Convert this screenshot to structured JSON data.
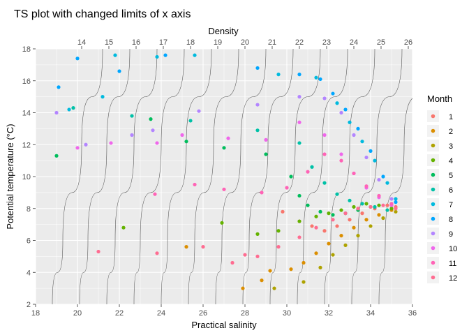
{
  "chart_data": {
    "type": "scatter",
    "title": "TS plot with changed limits of x axis",
    "xlabel": "Practical salinity",
    "ylabel": "Potential temperature (°C)",
    "top_axis_label": "Density",
    "xlim": [
      18,
      36
    ],
    "ylim": [
      2,
      18
    ],
    "x_ticks": [
      18,
      20,
      22,
      24,
      26,
      28,
      30,
      32,
      34,
      36
    ],
    "y_ticks": [
      2,
      4,
      6,
      8,
      10,
      12,
      14,
      16,
      18
    ],
    "grid": true,
    "legend_position": "right",
    "legend": {
      "title": "Month",
      "entries": [
        {
          "label": "1",
          "color": "#F8766D"
        },
        {
          "label": "2",
          "color": "#DB8E00"
        },
        {
          "label": "3",
          "color": "#AEA200"
        },
        {
          "label": "4",
          "color": "#64B200"
        },
        {
          "label": "5",
          "color": "#00BD5C"
        },
        {
          "label": "6",
          "color": "#00C1A7"
        },
        {
          "label": "7",
          "color": "#00BADE"
        },
        {
          "label": "8",
          "color": "#00A6FF"
        },
        {
          "label": "9",
          "color": "#B385FF"
        },
        {
          "label": "10",
          "color": "#EF67EB"
        },
        {
          "label": "11",
          "color": "#FF63B6"
        },
        {
          "label": "12",
          "color": "#FF6C91"
        }
      ]
    },
    "density_isolines": [
      {
        "label": "14",
        "label_salinity": 20.2,
        "points": [
          [
            18.8,
            2
          ],
          [
            19.3,
            6
          ],
          [
            20.2,
            12
          ],
          [
            21.2,
            18
          ]
        ]
      },
      {
        "label": "15",
        "label_salinity": 21.5,
        "points": [
          [
            20.1,
            2
          ],
          [
            20.5,
            6
          ],
          [
            21.4,
            12
          ],
          [
            22.5,
            18
          ]
        ]
      },
      {
        "label": "16",
        "label_salinity": 22.8,
        "points": [
          [
            21.4,
            2
          ],
          [
            21.8,
            6
          ],
          [
            22.7,
            12
          ],
          [
            23.8,
            18
          ]
        ]
      },
      {
        "label": "17",
        "label_salinity": 24.1,
        "points": [
          [
            22.7,
            2
          ],
          [
            23.0,
            6
          ],
          [
            24.0,
            12
          ],
          [
            25.1,
            18
          ]
        ]
      },
      {
        "label": "18",
        "label_salinity": 25.4,
        "points": [
          [
            24.0,
            2
          ],
          [
            24.3,
            6
          ],
          [
            25.2,
            12
          ],
          [
            26.4,
            18
          ]
        ]
      },
      {
        "label": "19",
        "label_salinity": 26.7,
        "points": [
          [
            25.3,
            2
          ],
          [
            25.6,
            6
          ],
          [
            26.5,
            12
          ],
          [
            27.7,
            18
          ]
        ]
      },
      {
        "label": "20",
        "label_salinity": 28.0,
        "points": [
          [
            26.6,
            2
          ],
          [
            26.9,
            6
          ],
          [
            27.8,
            12
          ],
          [
            29.0,
            18
          ]
        ]
      },
      {
        "label": "21",
        "label_salinity": 29.3,
        "points": [
          [
            27.9,
            2
          ],
          [
            28.2,
            6
          ],
          [
            29.1,
            12
          ],
          [
            30.3,
            18
          ]
        ]
      },
      {
        "label": "22",
        "label_salinity": 30.6,
        "points": [
          [
            29.2,
            2
          ],
          [
            29.5,
            6
          ],
          [
            30.4,
            12
          ],
          [
            31.6,
            18
          ]
        ]
      },
      {
        "label": "23",
        "label_salinity": 31.9,
        "points": [
          [
            30.5,
            2
          ],
          [
            30.8,
            6
          ],
          [
            31.7,
            12
          ],
          [
            32.9,
            18
          ]
        ]
      },
      {
        "label": "24",
        "label_salinity": 33.2,
        "points": [
          [
            31.8,
            2
          ],
          [
            32.1,
            6
          ],
          [
            33.0,
            12
          ],
          [
            34.2,
            18
          ]
        ]
      },
      {
        "label": "25",
        "label_salinity": 34.5,
        "points": [
          [
            33.1,
            2
          ],
          [
            33.4,
            6
          ],
          [
            34.3,
            12
          ],
          [
            35.5,
            18
          ]
        ]
      },
      {
        "label": "26",
        "label_salinity": 35.8,
        "points": [
          [
            34.4,
            2
          ],
          [
            34.7,
            6
          ],
          [
            35.6,
            12
          ],
          [
            36.8,
            18
          ]
        ]
      }
    ],
    "series": [
      {
        "name": "1",
        "points": [
          [
            29.8,
            7.8
          ],
          [
            30.6,
            7.2
          ],
          [
            31.2,
            6.9
          ],
          [
            31.8,
            6.6
          ],
          [
            32.4,
            6.9
          ],
          [
            33.0,
            7.3
          ],
          [
            33.6,
            7.7
          ],
          [
            34.2,
            8.0
          ],
          [
            34.8,
            8.2
          ],
          [
            35.2,
            8.1
          ]
        ]
      },
      {
        "name": "2",
        "points": [
          [
            25.2,
            5.6
          ],
          [
            27.9,
            3.0
          ],
          [
            28.8,
            3.5
          ],
          [
            29.2,
            4.1
          ],
          [
            30.2,
            4.2
          ],
          [
            30.8,
            4.6
          ],
          [
            31.4,
            5.2
          ],
          [
            32.0,
            5.8
          ],
          [
            32.6,
            6.3
          ],
          [
            33.2,
            6.8
          ],
          [
            33.8,
            7.3
          ],
          [
            34.4,
            7.6
          ],
          [
            35.0,
            7.9
          ]
        ]
      },
      {
        "name": "3",
        "points": [
          [
            29.4,
            3.0
          ],
          [
            30.8,
            3.4
          ],
          [
            31.6,
            4.3
          ],
          [
            32.2,
            5.1
          ],
          [
            32.8,
            5.7
          ],
          [
            33.4,
            6.3
          ],
          [
            34.0,
            6.9
          ],
          [
            34.6,
            7.4
          ],
          [
            35.2,
            7.8
          ]
        ]
      },
      {
        "name": "4",
        "points": [
          [
            22.2,
            6.8
          ],
          [
            26.9,
            7.1
          ],
          [
            28.6,
            6.4
          ],
          [
            29.6,
            6.6
          ],
          [
            30.6,
            7.2
          ],
          [
            31.4,
            7.5
          ],
          [
            32.0,
            7.7
          ],
          [
            32.6,
            7.9
          ],
          [
            33.2,
            8.1
          ],
          [
            33.8,
            8.3
          ],
          [
            34.4,
            8.2
          ],
          [
            35.0,
            8.0
          ]
        ]
      },
      {
        "name": "5",
        "points": [
          [
            19.0,
            11.3
          ],
          [
            23.5,
            13.6
          ],
          [
            25.2,
            12.2
          ],
          [
            27.0,
            11.8
          ],
          [
            29.0,
            11.4
          ],
          [
            30.2,
            10.0
          ],
          [
            30.6,
            8.8
          ],
          [
            31.0,
            8.2
          ],
          [
            31.6,
            7.8
          ],
          [
            32.2,
            7.6
          ],
          [
            32.8,
            7.7
          ],
          [
            33.4,
            7.9
          ],
          [
            34.0,
            8.1
          ]
        ]
      },
      {
        "name": "6",
        "points": [
          [
            19.8,
            14.3
          ],
          [
            22.6,
            13.8
          ],
          [
            25.4,
            13.5
          ],
          [
            28.6,
            12.9
          ],
          [
            30.6,
            12.1
          ],
          [
            31.2,
            10.6
          ],
          [
            31.8,
            9.6
          ],
          [
            32.4,
            8.9
          ],
          [
            33.0,
            8.5
          ],
          [
            33.6,
            8.3
          ],
          [
            34.2,
            8.1
          ],
          [
            34.8,
            7.9
          ]
        ]
      },
      {
        "name": "7",
        "points": [
          [
            19.6,
            14.2
          ],
          [
            21.2,
            15.0
          ],
          [
            21.8,
            17.6
          ],
          [
            23.8,
            17.5
          ],
          [
            25.6,
            17.6
          ],
          [
            29.6,
            16.4
          ],
          [
            31.4,
            16.2
          ],
          [
            32.4,
            14.6
          ],
          [
            33.0,
            13.4
          ],
          [
            33.6,
            12.2
          ],
          [
            34.2,
            11.0
          ],
          [
            34.8,
            9.6
          ],
          [
            35.2,
            8.6
          ]
        ]
      },
      {
        "name": "8",
        "points": [
          [
            19.1,
            15.6
          ],
          [
            20.0,
            17.4
          ],
          [
            22.0,
            16.6
          ],
          [
            24.2,
            17.6
          ],
          [
            28.6,
            16.8
          ],
          [
            30.6,
            16.4
          ],
          [
            31.6,
            16.1
          ],
          [
            32.2,
            15.2
          ],
          [
            32.8,
            14.2
          ],
          [
            33.4,
            13.0
          ],
          [
            34.0,
            11.6
          ],
          [
            34.6,
            10.0
          ],
          [
            35.2,
            8.4
          ]
        ]
      },
      {
        "name": "9",
        "points": [
          [
            19.0,
            14.0
          ],
          [
            20.4,
            12.0
          ],
          [
            22.6,
            12.6
          ],
          [
            23.6,
            12.9
          ],
          [
            25.8,
            14.1
          ],
          [
            28.6,
            14.5
          ],
          [
            30.6,
            15.0
          ],
          [
            31.8,
            14.9
          ],
          [
            32.6,
            14.0
          ],
          [
            33.2,
            12.6
          ],
          [
            33.8,
            11.2
          ],
          [
            34.4,
            9.8
          ],
          [
            35.0,
            8.6
          ]
        ]
      },
      {
        "name": "10",
        "points": [
          [
            20.0,
            11.8
          ],
          [
            21.6,
            12.1
          ],
          [
            23.8,
            12.1
          ],
          [
            25.0,
            12.6
          ],
          [
            27.2,
            12.4
          ],
          [
            29.0,
            12.3
          ],
          [
            30.6,
            13.4
          ],
          [
            31.8,
            12.6
          ],
          [
            32.6,
            11.4
          ],
          [
            33.2,
            10.2
          ],
          [
            33.8,
            9.3
          ],
          [
            34.4,
            8.7
          ],
          [
            35.0,
            8.2
          ]
        ]
      },
      {
        "name": "11",
        "points": [
          [
            23.7,
            8.9
          ],
          [
            25.6,
            9.5
          ],
          [
            27.0,
            9.2
          ],
          [
            28.8,
            9.0
          ],
          [
            30.0,
            9.3
          ],
          [
            31.0,
            10.3
          ],
          [
            31.8,
            11.4
          ],
          [
            32.6,
            11.0
          ],
          [
            33.2,
            10.2
          ],
          [
            33.8,
            9.4
          ],
          [
            34.4,
            8.8
          ],
          [
            35.0,
            8.3
          ]
        ]
      },
      {
        "name": "12",
        "points": [
          [
            21.0,
            5.3
          ],
          [
            23.8,
            5.2
          ],
          [
            26.0,
            5.6
          ],
          [
            27.4,
            4.6
          ],
          [
            28.0,
            5.1
          ],
          [
            28.6,
            5.0
          ],
          [
            29.6,
            5.6
          ],
          [
            30.6,
            6.2
          ],
          [
            31.4,
            6.8
          ],
          [
            32.2,
            7.3
          ],
          [
            32.8,
            7.7
          ],
          [
            33.4,
            8.0
          ],
          [
            34.0,
            8.1
          ],
          [
            34.6,
            8.2
          ],
          [
            35.2,
            8.0
          ]
        ]
      }
    ]
  }
}
